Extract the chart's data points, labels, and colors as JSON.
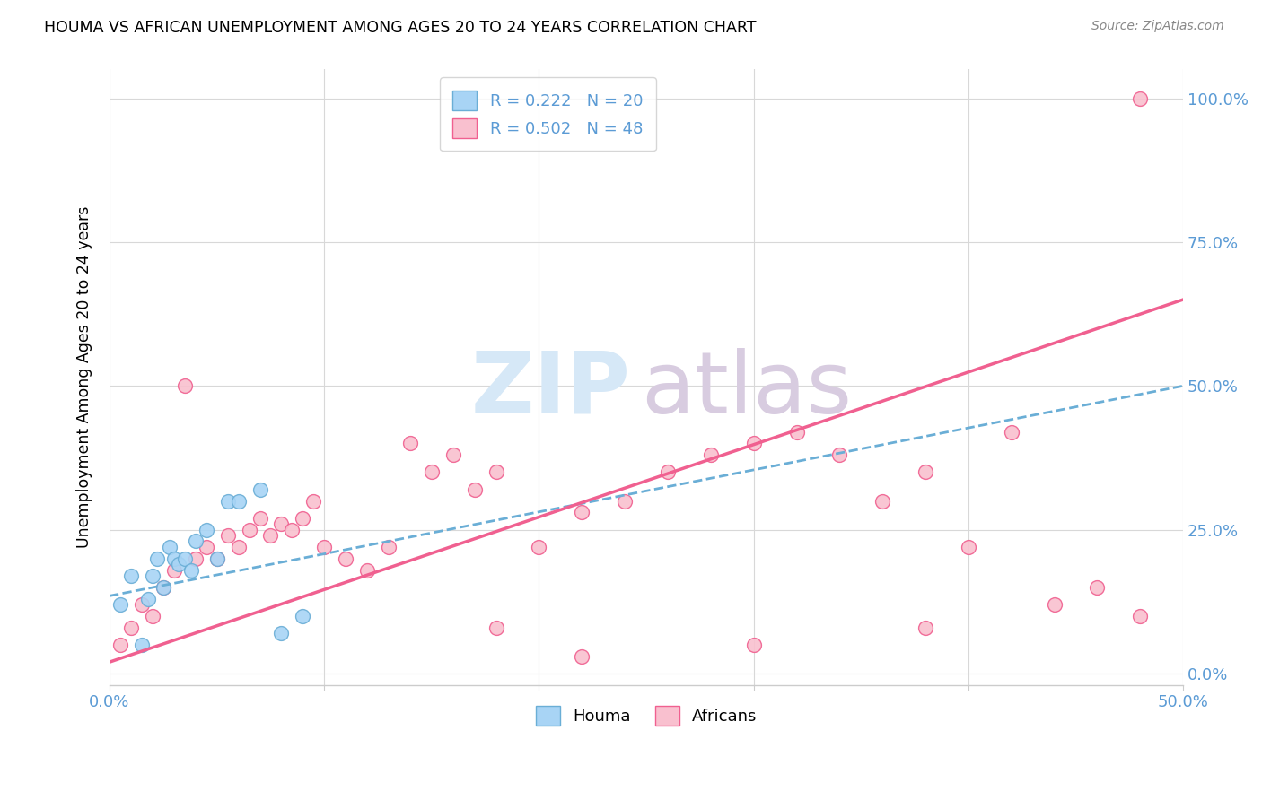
{
  "title": "HOUMA VS AFRICAN UNEMPLOYMENT AMONG AGES 20 TO 24 YEARS CORRELATION CHART",
  "source": "Source: ZipAtlas.com",
  "ylabel": "Unemployment Among Ages 20 to 24 years",
  "houma_color": "#a8d4f5",
  "houma_edge_color": "#6aaed6",
  "africans_color": "#f9c0cf",
  "africans_edge_color": "#f06090",
  "houma_line_color": "#6aaed6",
  "africans_line_color": "#f06090",
  "tick_color": "#5B9BD5",
  "watermark_zip_color": "#d6e8f7",
  "watermark_atlas_color": "#d8cce0",
  "houma_x": [
    0.5,
    1.0,
    1.5,
    1.8,
    2.0,
    2.2,
    2.5,
    2.8,
    3.0,
    3.2,
    3.5,
    3.8,
    4.0,
    4.5,
    5.0,
    5.5,
    6.0,
    7.0,
    8.0,
    9.0
  ],
  "houma_y": [
    12.0,
    17.0,
    5.0,
    13.0,
    17.0,
    20.0,
    15.0,
    22.0,
    20.0,
    19.0,
    20.0,
    18.0,
    23.0,
    25.0,
    20.0,
    30.0,
    30.0,
    32.0,
    7.0,
    10.0
  ],
  "africans_x": [
    0.5,
    1.0,
    1.5,
    2.0,
    2.5,
    3.0,
    3.5,
    4.0,
    4.5,
    5.0,
    5.5,
    6.0,
    6.5,
    7.0,
    7.5,
    8.0,
    8.5,
    9.0,
    9.5,
    10.0,
    11.0,
    12.0,
    13.0,
    14.0,
    15.0,
    16.0,
    17.0,
    18.0,
    20.0,
    22.0,
    24.0,
    26.0,
    28.0,
    30.0,
    32.0,
    34.0,
    36.0,
    38.0,
    40.0,
    42.0,
    44.0,
    46.0,
    48.0,
    38.0,
    30.0,
    22.0,
    18.0,
    48.0
  ],
  "africans_y": [
    5.0,
    8.0,
    12.0,
    10.0,
    15.0,
    18.0,
    50.0,
    20.0,
    22.0,
    20.0,
    24.0,
    22.0,
    25.0,
    27.0,
    24.0,
    26.0,
    25.0,
    27.0,
    30.0,
    22.0,
    20.0,
    18.0,
    22.0,
    40.0,
    35.0,
    38.0,
    32.0,
    35.0,
    22.0,
    28.0,
    30.0,
    35.0,
    38.0,
    40.0,
    42.0,
    38.0,
    30.0,
    35.0,
    22.0,
    42.0,
    12.0,
    15.0,
    10.0,
    8.0,
    5.0,
    3.0,
    8.0,
    100.0
  ],
  "xlim": [
    0.0,
    50.0
  ],
  "ylim": [
    -2.0,
    105.0
  ],
  "xtick_positions": [
    0.0,
    10.0,
    20.0,
    30.0,
    40.0,
    50.0
  ],
  "ytick_positions": [
    0.0,
    25.0,
    50.0,
    75.0,
    100.0
  ],
  "houma_trend_x": [
    0.0,
    50.0
  ],
  "houma_trend_y": [
    13.5,
    50.0
  ],
  "africans_trend_x": [
    0.0,
    50.0
  ],
  "africans_trend_y": [
    2.0,
    65.0
  ]
}
